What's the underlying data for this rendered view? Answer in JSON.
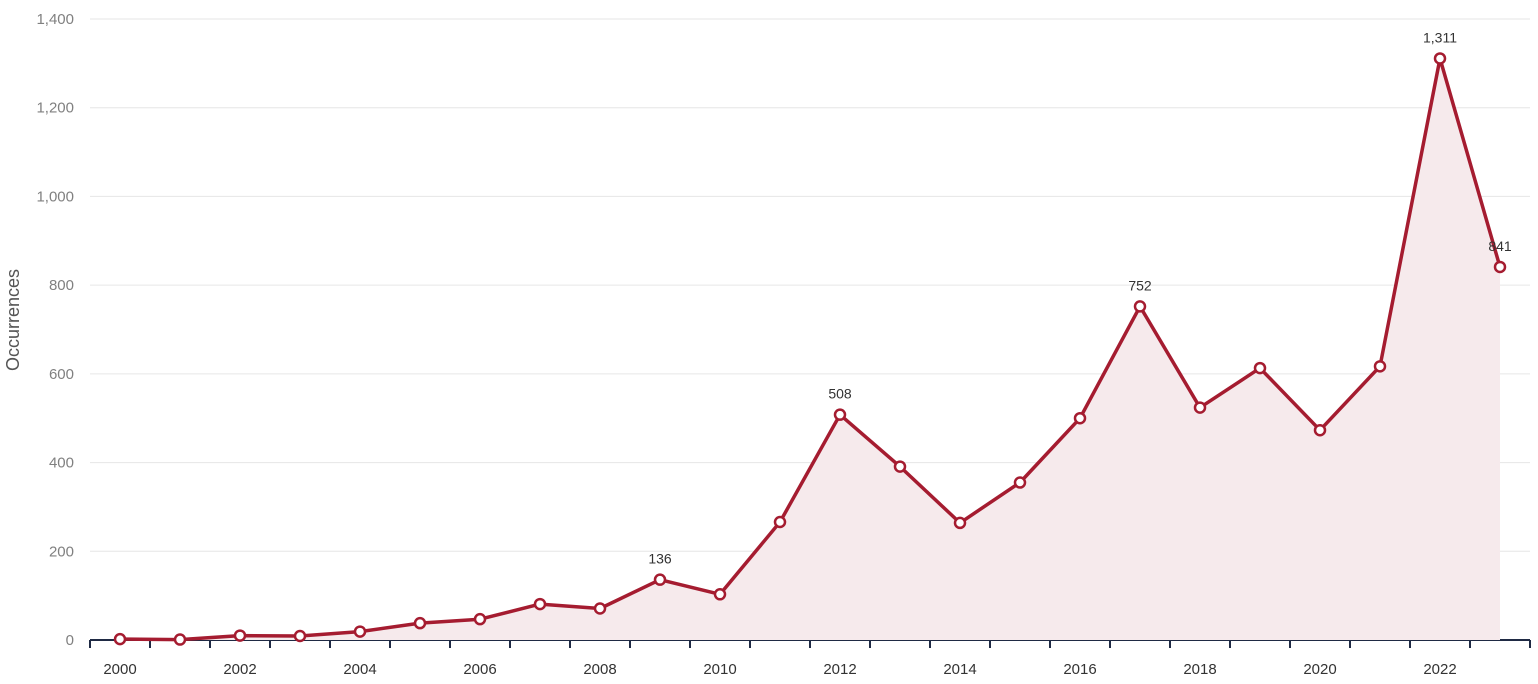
{
  "chart_data": {
    "type": "area",
    "title": "",
    "xlabel": "",
    "ylabel": "Occurrences",
    "x": [
      2000,
      2001,
      2002,
      2003,
      2004,
      2005,
      2006,
      2007,
      2008,
      2009,
      2010,
      2011,
      2012,
      2013,
      2014,
      2015,
      2016,
      2017,
      2018,
      2019,
      2020,
      2021,
      2022,
      2023
    ],
    "values": [
      2,
      1,
      10,
      9,
      19,
      38,
      47,
      81,
      71,
      136,
      103,
      266,
      508,
      391,
      264,
      355,
      500,
      752,
      524,
      613,
      473,
      617,
      1311,
      841
    ],
    "xlim": [
      2000,
      2023
    ],
    "ylim": [
      0,
      1400
    ],
    "x_ticks": [
      "2000",
      "2002",
      "2004",
      "2006",
      "2008",
      "2010",
      "2012",
      "2014",
      "2016",
      "2018",
      "2020",
      "2022"
    ],
    "y_ticks": [
      "0",
      "200",
      "400",
      "600",
      "800",
      "1,000",
      "1,200",
      "1,400"
    ],
    "data_labels": [
      {
        "year": 2009,
        "text": "136"
      },
      {
        "year": 2012,
        "text": "508"
      },
      {
        "year": 2017,
        "text": "752"
      },
      {
        "year": 2022,
        "text": "1,311"
      },
      {
        "year": 2023,
        "text": "841"
      }
    ],
    "grid": true,
    "legend": "none",
    "colors": {
      "line": "#a51c30",
      "fill": "#f6eaec",
      "marker_fill": "#ffffff",
      "grid": "#e6e6e6",
      "axis": "#1f2a44"
    }
  }
}
